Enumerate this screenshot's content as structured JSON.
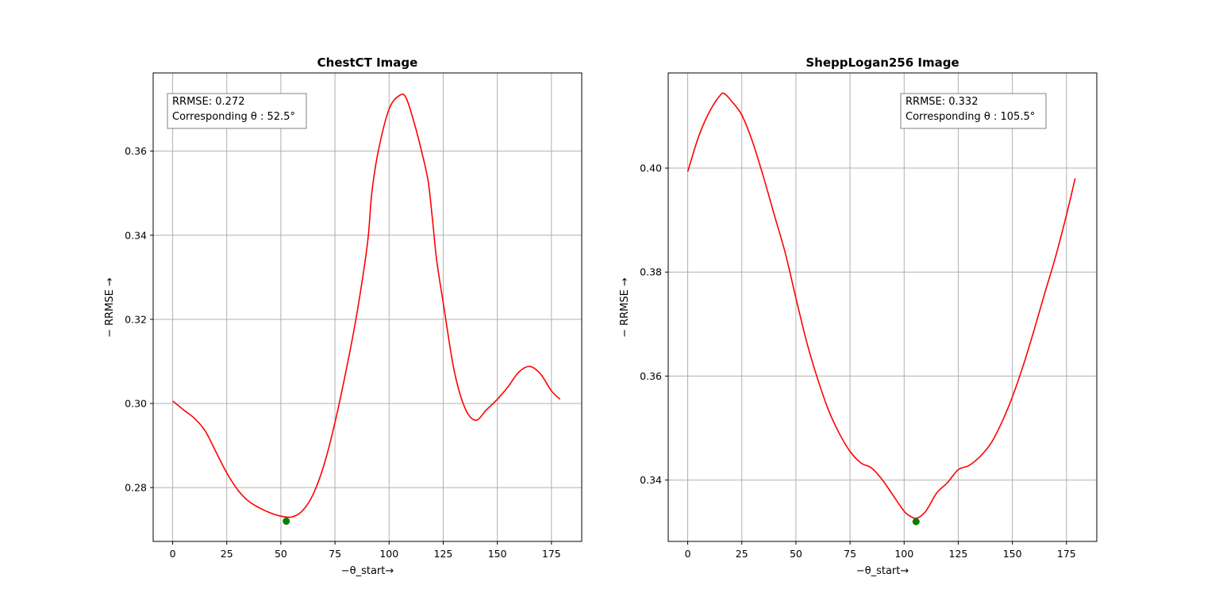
{
  "chart_data": [
    {
      "type": "line",
      "title": "ChestCT Image",
      "xlabel": "−θ_start→",
      "ylabel": "− RRMSE →",
      "xlim": [
        -9,
        189
      ],
      "ylim": [
        0.2672,
        0.3786
      ],
      "xticks": [
        0,
        25,
        50,
        75,
        100,
        125,
        150,
        175
      ],
      "yticks": [
        0.28,
        0.3,
        0.32,
        0.34,
        0.36
      ],
      "grid": true,
      "line_color": "#ff0000",
      "marker_color": "#008000",
      "annotation": {
        "rrmse": "RRMSE: 0.272",
        "theta": "Corresponding θ : 52.5°",
        "placement": "top-left"
      },
      "minimum": {
        "x": 52.5,
        "y": 0.272
      },
      "series": [
        {
          "x": [
            0,
            5,
            10,
            15,
            20,
            25,
            30,
            35,
            40,
            45,
            50,
            55,
            60,
            65,
            70,
            75,
            80,
            85,
            90,
            92,
            95,
            100,
            105,
            108,
            112,
            115,
            118,
            120,
            122,
            125,
            130,
            135,
            140,
            145,
            150,
            155,
            160,
            165,
            170,
            175,
            179
          ],
          "y": [
            0.3006,
            0.2985,
            0.2965,
            0.2935,
            0.2885,
            0.2835,
            0.2795,
            0.2768,
            0.2752,
            0.274,
            0.2732,
            0.273,
            0.2745,
            0.2785,
            0.2855,
            0.2955,
            0.3075,
            0.321,
            0.338,
            0.35,
            0.36,
            0.37,
            0.3733,
            0.3725,
            0.366,
            0.36,
            0.353,
            0.344,
            0.334,
            0.324,
            0.308,
            0.299,
            0.296,
            0.2985,
            0.301,
            0.304,
            0.3075,
            0.3088,
            0.307,
            0.303,
            0.301
          ]
        }
      ]
    },
    {
      "type": "line",
      "title": "SheppLogan256 Image",
      "xlabel": "−θ_start→",
      "ylabel": "− RRMSE →",
      "xlim": [
        -9,
        189
      ],
      "ylim": [
        0.3282,
        0.4183
      ],
      "xticks": [
        0,
        25,
        50,
        75,
        100,
        125,
        150,
        175
      ],
      "yticks": [
        0.34,
        0.36,
        0.38,
        0.4
      ],
      "grid": true,
      "line_color": "#ff0000",
      "marker_color": "#008000",
      "annotation": {
        "rrmse": "RRMSE: 0.332",
        "theta": "Corresponding θ : 105.5°",
        "placement": "top-right"
      },
      "minimum": {
        "x": 105.5,
        "y": 0.332
      },
      "series": [
        {
          "x": [
            0,
            5,
            10,
            15,
            17,
            20,
            25,
            30,
            35,
            40,
            45,
            50,
            55,
            60,
            65,
            70,
            75,
            80,
            85,
            90,
            95,
            100,
            103,
            106,
            110,
            115,
            120,
            125,
            130,
            135,
            140,
            145,
            150,
            155,
            160,
            165,
            170,
            175,
            179
          ],
          "y": [
            0.3993,
            0.406,
            0.4108,
            0.414,
            0.4143,
            0.413,
            0.4102,
            0.405,
            0.3983,
            0.391,
            0.3838,
            0.375,
            0.3665,
            0.3595,
            0.3535,
            0.349,
            0.3455,
            0.3433,
            0.3423,
            0.34,
            0.337,
            0.334,
            0.333,
            0.3327,
            0.334,
            0.3375,
            0.3395,
            0.342,
            0.3428,
            0.3445,
            0.347,
            0.351,
            0.356,
            0.362,
            0.3688,
            0.376,
            0.383,
            0.391,
            0.398
          ]
        }
      ]
    }
  ]
}
